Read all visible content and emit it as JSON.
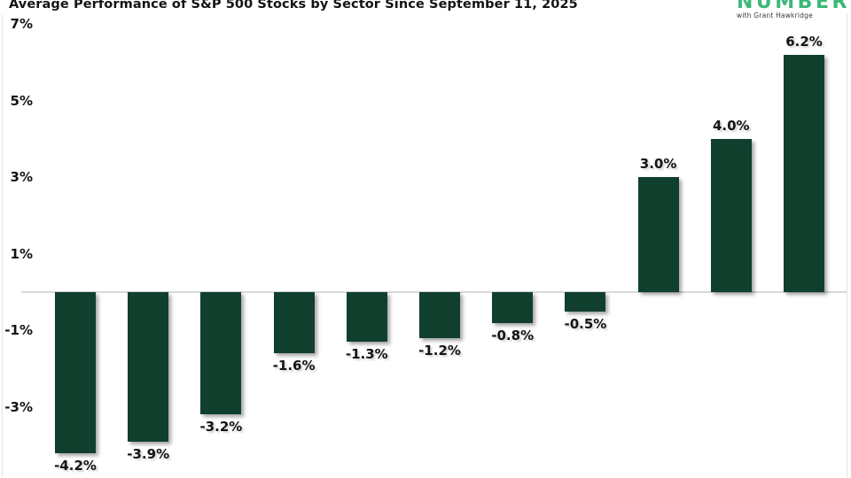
{
  "logo": {
    "brand": "NUMBER",
    "tagline": "with Grant Hawkridge",
    "brand_color": "#3cb878",
    "tagline_color": "#3a3a3a"
  },
  "chart_data": {
    "type": "bar",
    "title": "Average Performance of S&P 500 Stocks by Sector Since September 11, 2025",
    "xlabel": "",
    "ylabel": "",
    "values": [
      -4.2,
      -3.9,
      -3.2,
      -1.6,
      -1.3,
      -1.2,
      -0.8,
      -0.5,
      3.0,
      4.0,
      6.2
    ],
    "bar_labels": [
      "-4.2%",
      "-3.9%",
      "-3.2%",
      "-1.6%",
      "-1.3%",
      "-1.2%",
      "-0.8%",
      "-0.5%",
      "3.0%",
      "4.0%",
      "6.2%"
    ],
    "y_ticks": [
      {
        "label": "7%",
        "value": 7
      },
      {
        "label": "5%",
        "value": 5
      },
      {
        "label": "3%",
        "value": 3
      },
      {
        "label": "1%",
        "value": 1
      },
      {
        "label": "-1%",
        "value": -1
      },
      {
        "label": "-3%",
        "value": -3
      }
    ],
    "ylim": [
      -4.86,
      7.63
    ],
    "grid": false,
    "legend_position": "none",
    "bar_color": "#113f2e",
    "zero_line_color": "#d9d9d9",
    "axis_line_color": "#e4e4e4",
    "text_color": "#141414"
  }
}
